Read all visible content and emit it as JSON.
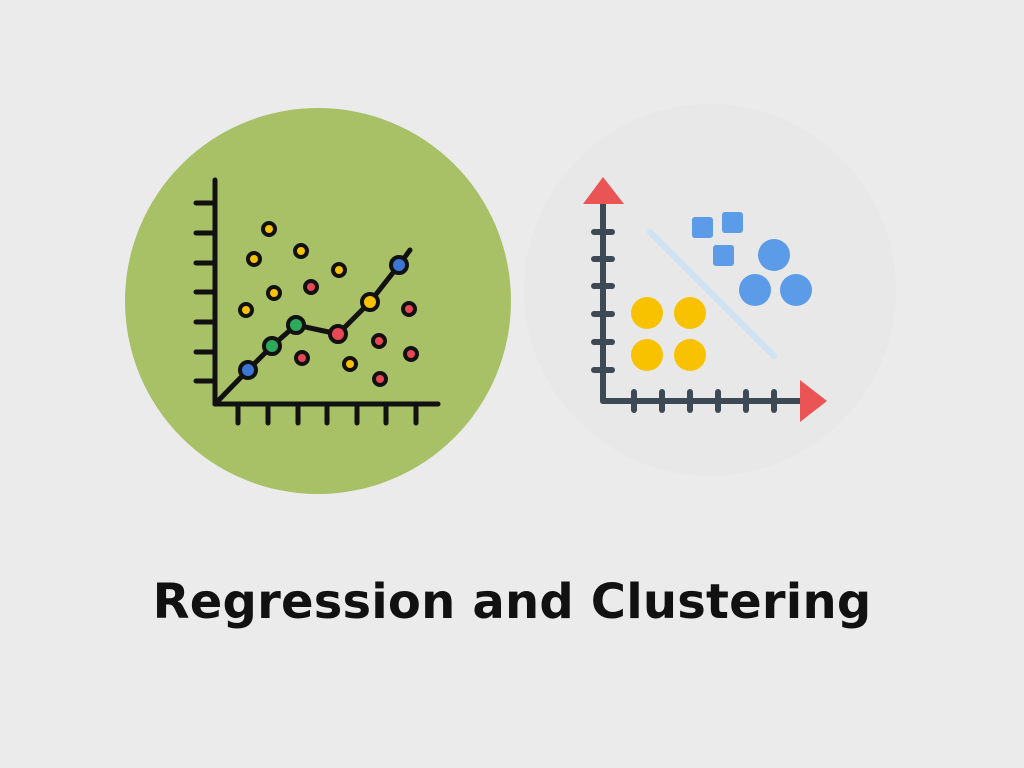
{
  "caption": "Regression and Clustering",
  "colors": {
    "background": "#ebebeb",
    "regression_circle": "#a8c066",
    "clustering_circle": "#e8e8e8",
    "line": "#111111",
    "axis_dark": "#3d4a56",
    "arrow": "#ea5455",
    "yellow": "#f8c200",
    "blue": "#5b9be8",
    "red": "#e84855",
    "green": "#2eaa5c",
    "point_blue": "#3b76d4",
    "separator": "#cfe3f2",
    "text": "#111111"
  },
  "icons": {
    "regression": "scatter-plot-with-trend-line-icon",
    "clustering": "clustering-scatter-icon"
  }
}
